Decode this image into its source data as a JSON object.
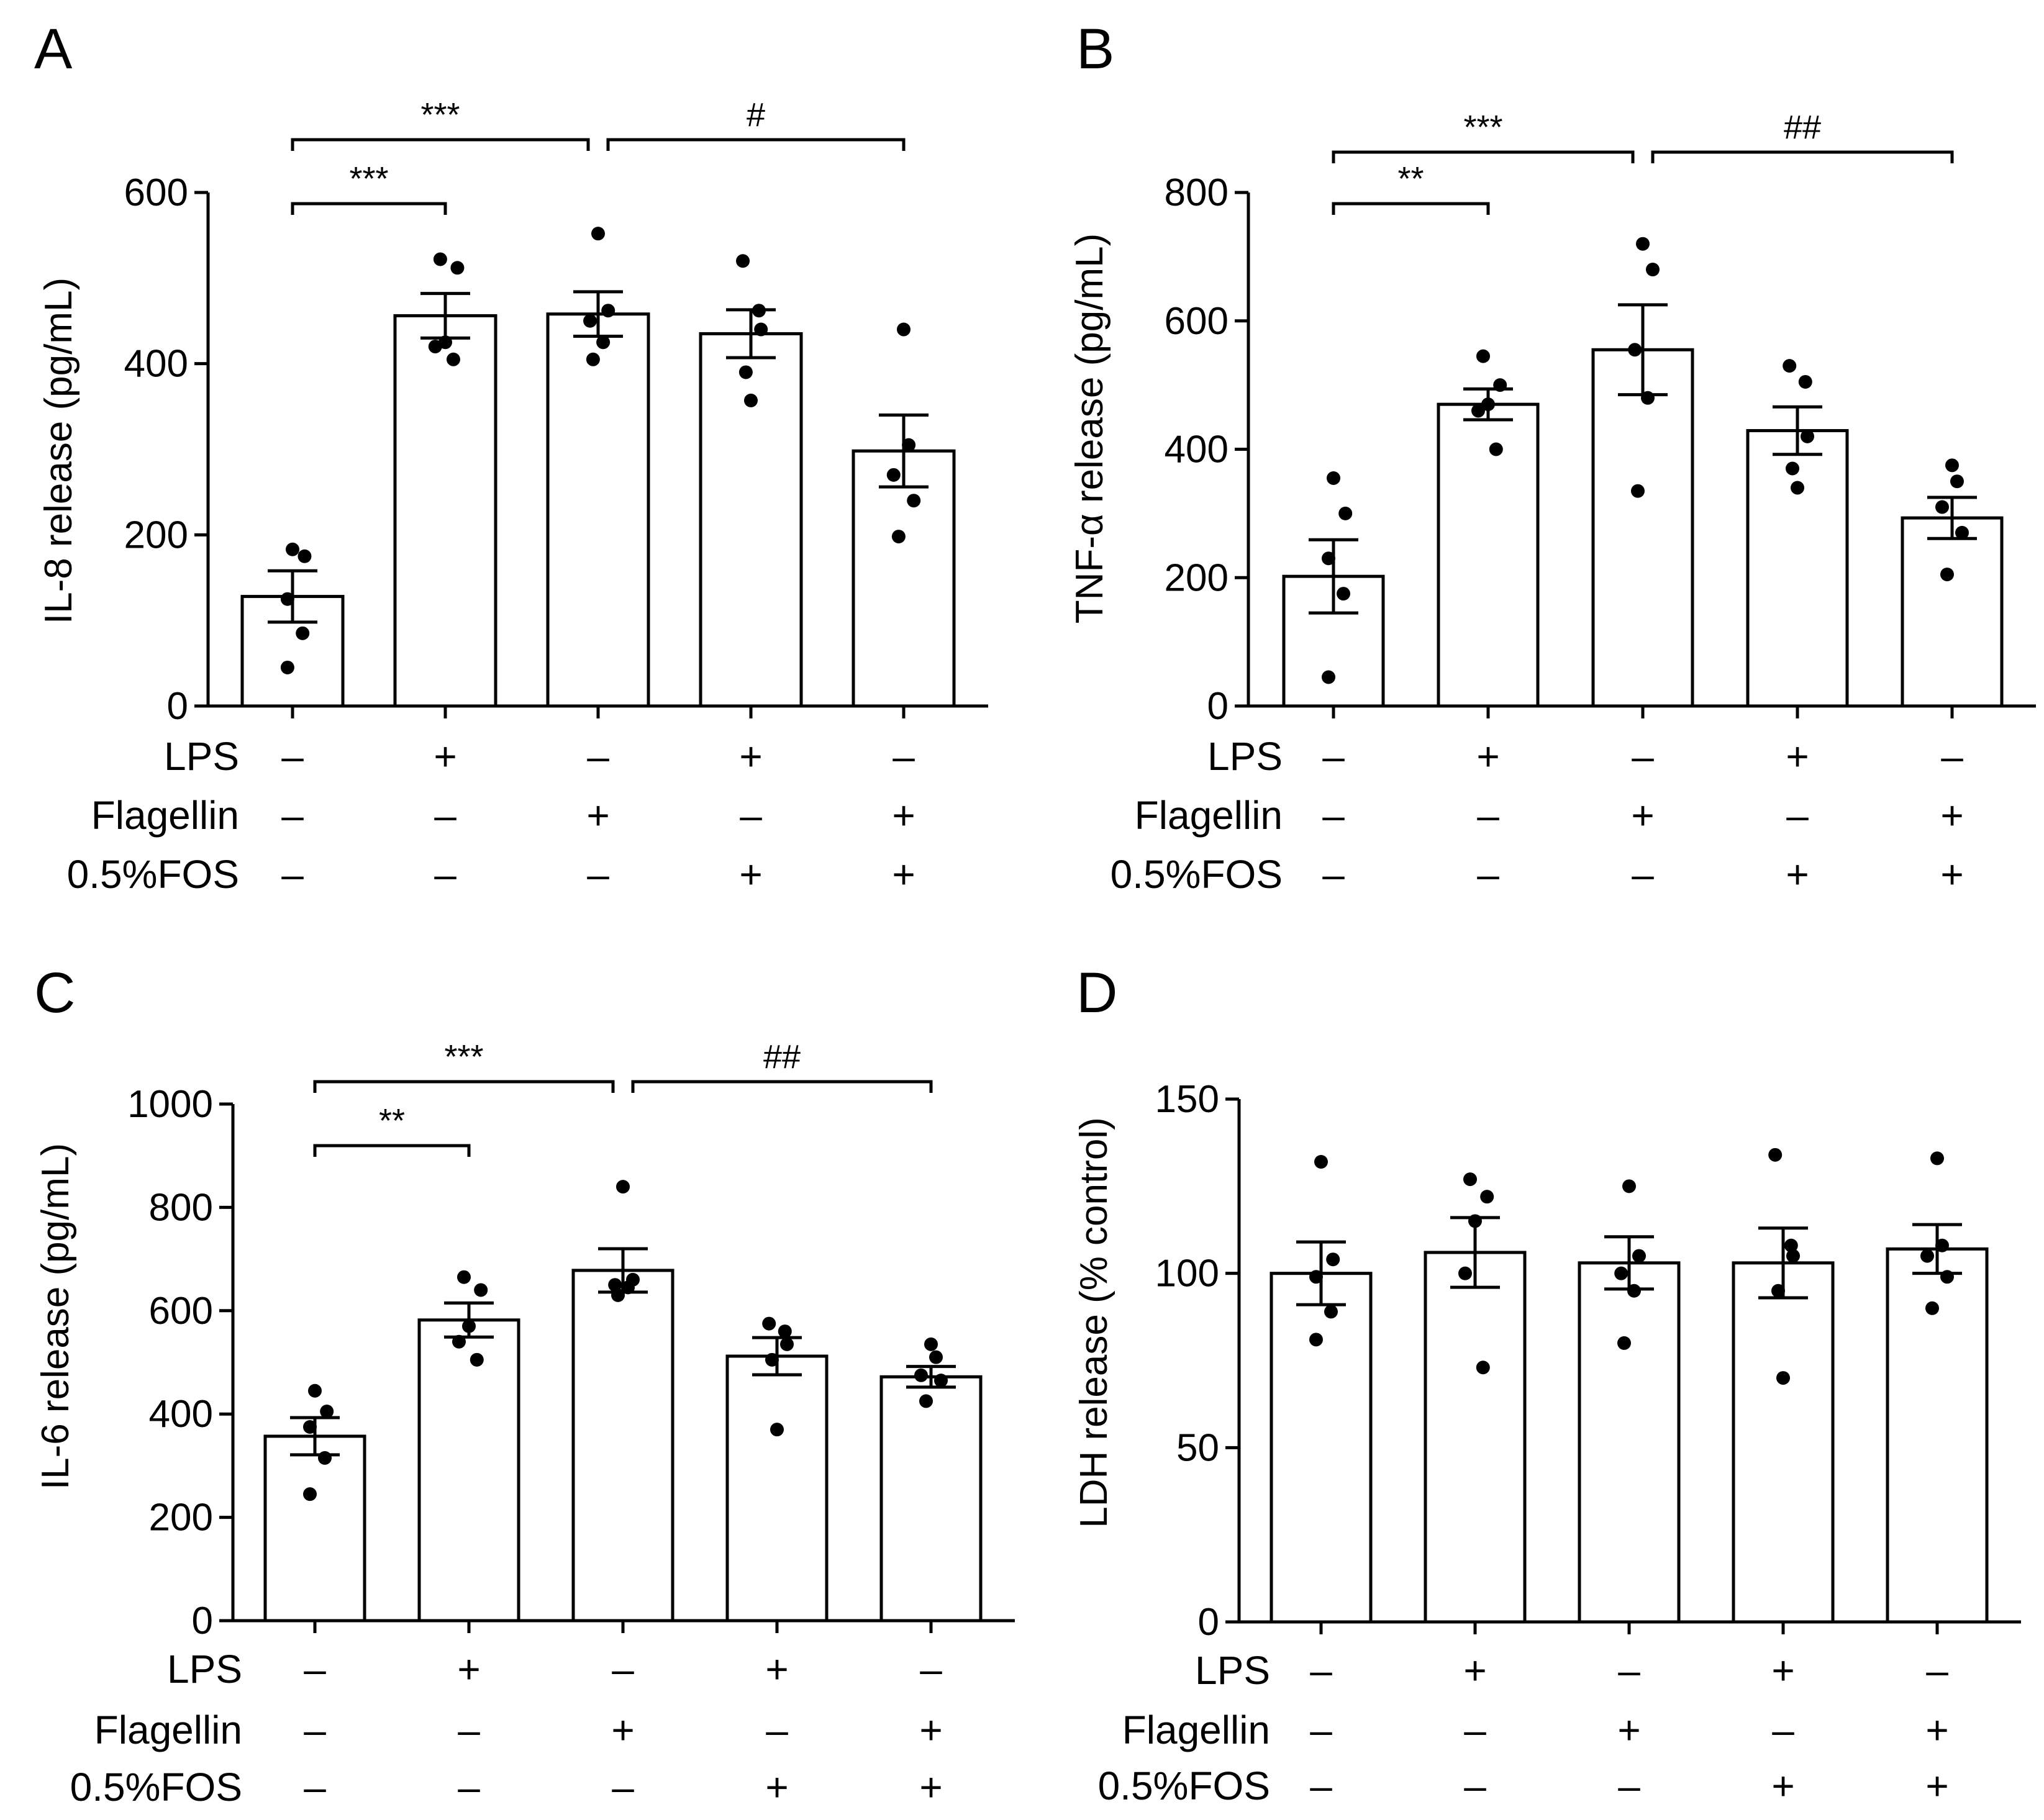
{
  "panels": [
    {
      "letter": "A",
      "chart_data": {
        "type": "bar",
        "ylabel": "IL-8 release (pg/mL)",
        "ylim": [
          0,
          600
        ],
        "yticks": [
          0,
          200,
          400,
          600
        ],
        "ytick_labels": [
          "0",
          "200",
          "400",
          "600"
        ],
        "means": [
          128,
          456,
          458,
          435,
          298
        ],
        "sem": [
          30,
          26,
          26,
          28,
          42
        ],
        "points": [
          [
            183,
            175,
            125,
            85,
            45
          ],
          [
            522,
            512,
            425,
            420,
            405
          ],
          [
            552,
            462,
            450,
            425,
            405
          ],
          [
            520,
            462,
            440,
            390,
            357
          ],
          [
            440,
            305,
            270,
            240,
            198
          ]
        ]
      },
      "treatments": [
        {
          "label": "LPS",
          "signs": [
            "–",
            "+",
            "–",
            "+",
            "–"
          ]
        },
        {
          "label": "Flagellin",
          "signs": [
            "–",
            "–",
            "+",
            "–",
            "+"
          ]
        },
        {
          "label": "0.5%FOS",
          "signs": [
            "–",
            "–",
            "–",
            "+",
            "+"
          ]
        }
      ],
      "brackets": [
        {
          "from": 0,
          "to": 1,
          "level": 0,
          "label": "***"
        },
        {
          "from": 0,
          "to": 2,
          "level": 1,
          "label": "***"
        },
        {
          "from": 2,
          "to": 4,
          "level": 1,
          "label": "#"
        }
      ]
    },
    {
      "letter": "B",
      "chart_data": {
        "type": "bar",
        "ylabel": "TNF-α release (pg/mL)",
        "ylim": [
          0,
          800
        ],
        "yticks": [
          0,
          200,
          400,
          600,
          800
        ],
        "ytick_labels": [
          "0",
          "200",
          "400",
          "600",
          "800"
        ],
        "means": [
          202,
          470,
          555,
          429,
          293
        ],
        "sem": [
          57,
          24,
          70,
          37,
          32
        ],
        "points": [
          [
            355,
            300,
            230,
            175,
            45
          ],
          [
            545,
            500,
            470,
            460,
            400
          ],
          [
            720,
            680,
            555,
            480,
            335
          ],
          [
            530,
            505,
            420,
            370,
            340
          ],
          [
            375,
            350,
            310,
            270,
            205
          ]
        ]
      },
      "treatments": [
        {
          "label": "LPS",
          "signs": [
            "–",
            "+",
            "–",
            "+",
            "–"
          ]
        },
        {
          "label": "Flagellin",
          "signs": [
            "–",
            "–",
            "+",
            "–",
            "+"
          ]
        },
        {
          "label": "0.5%FOS",
          "signs": [
            "–",
            "–",
            "–",
            "+",
            "+"
          ]
        }
      ],
      "brackets": [
        {
          "from": 0,
          "to": 1,
          "level": 0,
          "label": "**"
        },
        {
          "from": 0,
          "to": 2,
          "level": 1,
          "label": "***"
        },
        {
          "from": 2,
          "to": 4,
          "level": 1,
          "label": "##"
        }
      ]
    },
    {
      "letter": "C",
      "chart_data": {
        "type": "bar",
        "ylabel": "IL-6 release (pg/mL)",
        "ylim": [
          0,
          1000
        ],
        "yticks": [
          0,
          200,
          400,
          600,
          800,
          1000
        ],
        "ytick_labels": [
          "0",
          "200",
          "400",
          "600",
          "800",
          "1000"
        ],
        "means": [
          357,
          582,
          678,
          512,
          472
        ],
        "sem": [
          36,
          33,
          42,
          36,
          20
        ],
        "points": [
          [
            445,
            405,
            375,
            315,
            245
          ],
          [
            665,
            640,
            570,
            540,
            505
          ],
          [
            840,
            660,
            650,
            645,
            630
          ],
          [
            575,
            560,
            535,
            505,
            370
          ],
          [
            535,
            510,
            475,
            465,
            425
          ]
        ]
      },
      "treatments": [
        {
          "label": "LPS",
          "signs": [
            "–",
            "+",
            "–",
            "+",
            "–"
          ]
        },
        {
          "label": "Flagellin",
          "signs": [
            "–",
            "–",
            "+",
            "–",
            "+"
          ]
        },
        {
          "label": "0.5%FOS",
          "signs": [
            "–",
            "–",
            "–",
            "+",
            "+"
          ]
        }
      ],
      "brackets": [
        {
          "from": 0,
          "to": 1,
          "level": 0,
          "label": "**"
        },
        {
          "from": 0,
          "to": 2,
          "level": 1,
          "label": "***"
        },
        {
          "from": 2,
          "to": 4,
          "level": 1,
          "label": "##"
        }
      ]
    },
    {
      "letter": "D",
      "chart_data": {
        "type": "bar",
        "ylabel": "LDH release (% control)",
        "ylim": [
          0,
          150
        ],
        "yticks": [
          0,
          50,
          100,
          150
        ],
        "ytick_labels": [
          "0",
          "50",
          "100",
          "150"
        ],
        "means": [
          100,
          106,
          103,
          103,
          107
        ],
        "sem": [
          9,
          10,
          7.5,
          10,
          7
        ],
        "points": [
          [
            132,
            104,
            99,
            89,
            81
          ],
          [
            127,
            122,
            115,
            100,
            73
          ],
          [
            125,
            105,
            100,
            95,
            80
          ],
          [
            134,
            108,
            105,
            95,
            70
          ],
          [
            133,
            108,
            105,
            99,
            90
          ]
        ]
      },
      "treatments": [
        {
          "label": "LPS",
          "signs": [
            "–",
            "+",
            "–",
            "+",
            "–"
          ]
        },
        {
          "label": "Flagellin",
          "signs": [
            "–",
            "–",
            "+",
            "–",
            "+"
          ]
        },
        {
          "label": "0.5%FOS",
          "signs": [
            "–",
            "–",
            "–",
            "+",
            "+"
          ]
        }
      ],
      "brackets": []
    }
  ]
}
